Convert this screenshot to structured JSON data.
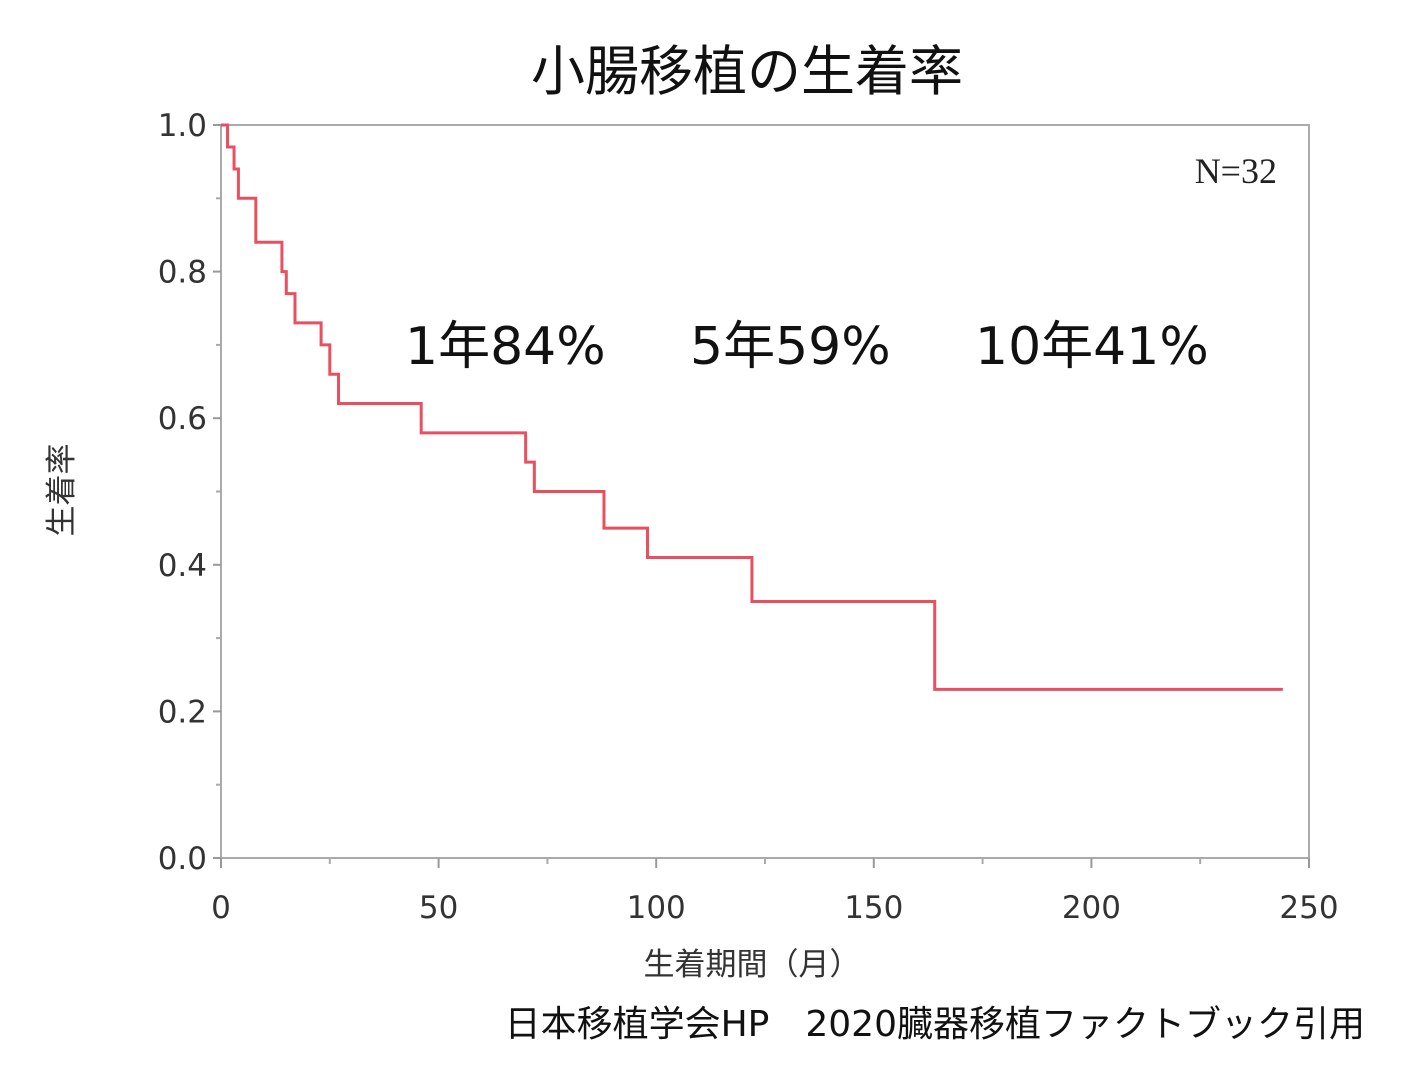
{
  "title": "小腸移植の生着率",
  "n_label": "N=32",
  "annotations": [
    "1年84%",
    "5年59%",
    "10年41%"
  ],
  "source": "日本移植学会HP　2020臓器移植ファクトブック引用",
  "colors": {
    "line": "#e8505f",
    "frame": "#aaaaaa",
    "text": "#333333"
  },
  "chart_data": {
    "type": "line",
    "subtype": "kaplan-meier-step",
    "xlabel": "生着期間（月）",
    "ylabel": "生着率",
    "xlim": [
      0,
      250
    ],
    "ylim": [
      0.0,
      1.0
    ],
    "x_ticks": [
      "0",
      "50",
      "100",
      "150",
      "200",
      "250"
    ],
    "y_ticks": [
      "0.0",
      "0.2",
      "0.4",
      "0.6",
      "0.8",
      "1.0"
    ],
    "grid": false,
    "series": [
      {
        "x": [
          0,
          1.5,
          3,
          4,
          8,
          14,
          15,
          17,
          23,
          25,
          27,
          46,
          70,
          72,
          88,
          98,
          122,
          164,
          244
        ],
        "y": [
          1.0,
          0.97,
          0.94,
          0.9,
          0.84,
          0.8,
          0.77,
          0.73,
          0.7,
          0.66,
          0.62,
          0.58,
          0.54,
          0.5,
          0.45,
          0.41,
          0.35,
          0.23,
          0.23
        ]
      }
    ]
  }
}
